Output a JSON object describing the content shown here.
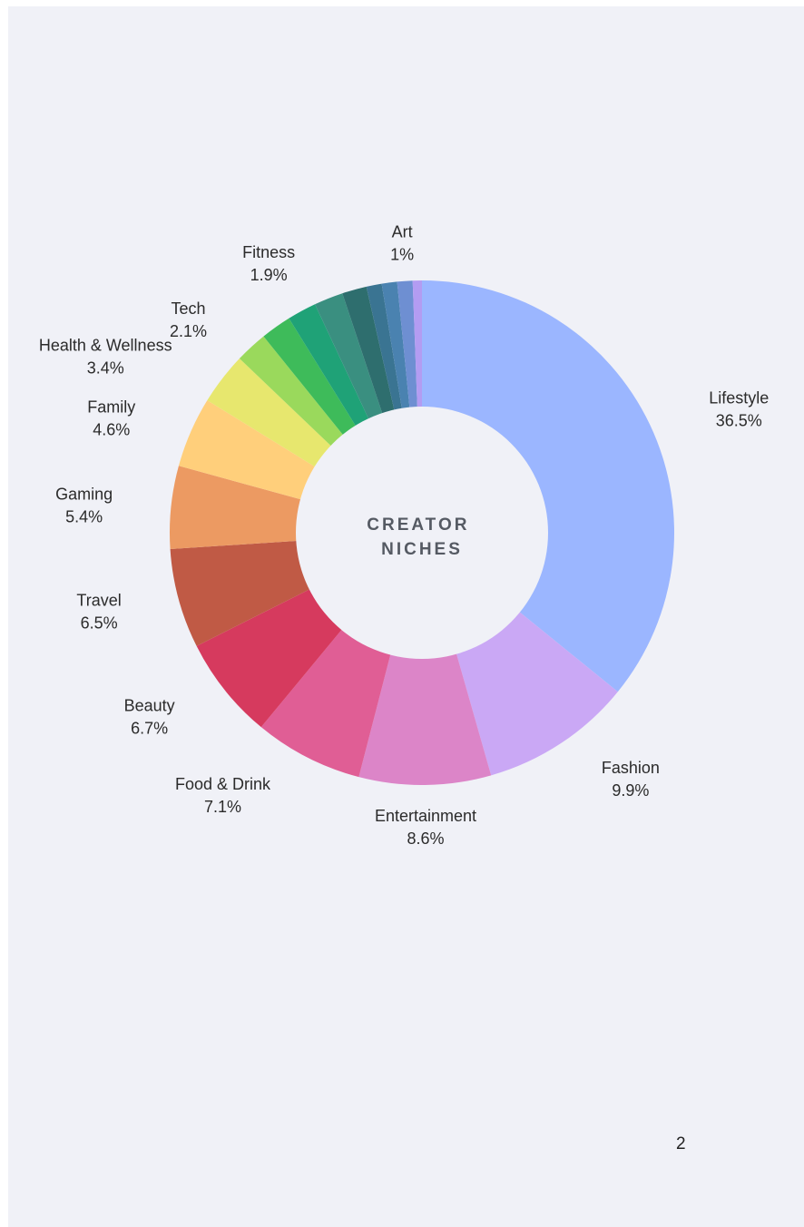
{
  "chart_data": {
    "type": "pie",
    "center_title_lines": [
      "CREATOR",
      "NICHES"
    ],
    "slices": [
      {
        "label": "Lifestyle",
        "value": 36.5,
        "value_text": "36.5%",
        "color": "#9bb6ff",
        "show_label": true
      },
      {
        "label": "Fashion",
        "value": 9.9,
        "value_text": "9.9%",
        "color": "#caa8f5",
        "show_label": true
      },
      {
        "label": "Entertainment",
        "value": 8.6,
        "value_text": "8.6%",
        "color": "#dc85c8",
        "show_label": true
      },
      {
        "label": "Food & Drink",
        "value": 7.1,
        "value_text": "7.1%",
        "color": "#e05e95",
        "show_label": true
      },
      {
        "label": "Beauty",
        "value": 6.7,
        "value_text": "6.7%",
        "color": "#d63a5e",
        "show_label": true
      },
      {
        "label": "Travel",
        "value": 6.5,
        "value_text": "6.5%",
        "color": "#c05a45",
        "show_label": true
      },
      {
        "label": "Gaming",
        "value": 5.4,
        "value_text": "5.4%",
        "color": "#ec9a62",
        "show_label": true
      },
      {
        "label": "Family",
        "value": 4.6,
        "value_text": "4.6%",
        "color": "#ffcf7b",
        "show_label": true
      },
      {
        "label": "Health & Wellness",
        "value": 3.4,
        "value_text": "3.4%",
        "color": "#e7e76e",
        "show_label": true
      },
      {
        "label": "Tech",
        "value": 2.1,
        "value_text": "2.1%",
        "color": "#9ad95c",
        "show_label": true
      },
      {
        "label": "",
        "value": 2.0,
        "value_text": "",
        "color": "#3ebb5a",
        "show_label": false
      },
      {
        "label": "",
        "value": 1.9,
        "value_text": "",
        "color": "#1fa277",
        "show_label": false
      },
      {
        "label": "Fitness",
        "value": 1.9,
        "value_text": "1.9%",
        "color": "#3a8f80",
        "show_label": true
      },
      {
        "label": "",
        "value": 1.6,
        "value_text": "",
        "color": "#2e6e6e",
        "show_label": false
      },
      {
        "label": "",
        "value": 1.0,
        "value_text": "",
        "color": "#3a7492",
        "show_label": false
      },
      {
        "label": "",
        "value": 1.0,
        "value_text": "",
        "color": "#4a82b0",
        "show_label": false
      },
      {
        "label": "Art",
        "value": 1.0,
        "value_text": "1%",
        "color": "#6e8fd2",
        "show_label": true
      },
      {
        "label": "",
        "value": 0.6,
        "value_text": "",
        "color": "#b39cf2",
        "show_label": false
      }
    ]
  },
  "footer": {
    "page_number": "2"
  }
}
